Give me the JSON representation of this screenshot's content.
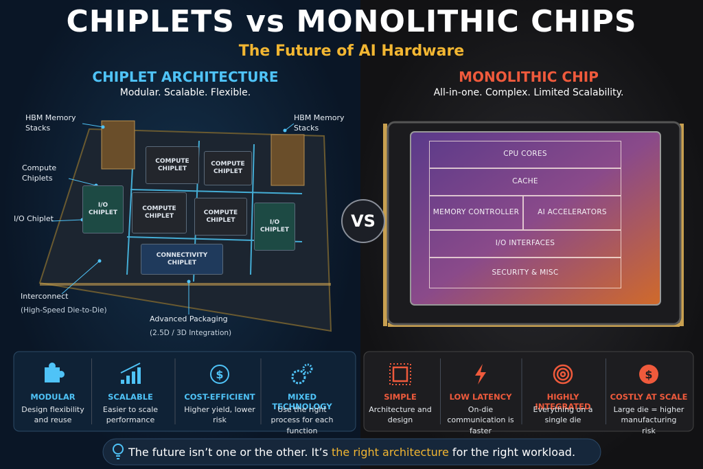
{
  "header": {
    "title": "CHIPLETS vs MONOLITHIC CHIPS",
    "subtitle": "The Future of AI Hardware"
  },
  "left": {
    "title": "CHIPLET ARCHITECTURE",
    "tagline": "Modular. Scalable. Flexible.",
    "chips": [
      "COMPUTE CHIPLET",
      "COMPUTE CHIPLET",
      "I/O CHIPLET",
      "COMPUTE CHIPLET",
      "COMPUTE CHIPLET",
      "I/O CHIPLET",
      "CONNECTIVITY CHIPLET"
    ],
    "callouts": [
      "HBM Memory Stacks",
      "HBM Memory Stacks",
      "Compute Chiplets",
      "I/O Chiplet",
      "Interconnect",
      "(High-Speed Die-to-Die)",
      "Advanced Packaging",
      "(2.5D / 3D Integration)"
    ],
    "features": [
      {
        "title": "MODULAR",
        "text": "Design flexibility and reuse"
      },
      {
        "title": "SCALABLE",
        "text": "Easier to scale performance"
      },
      {
        "title": "COST-EFFICIENT",
        "text": "Higher yield, lower risk"
      },
      {
        "title": "MIXED TECHNOLOGY",
        "text": "Use the right process for each function"
      }
    ]
  },
  "vs": "VS",
  "right": {
    "title": "MONOLITHIC CHIP",
    "tagline": "All-in-one. Complex. Limited Scalability.",
    "blocks": [
      "CPU CORES",
      "CACHE",
      "MEMORY CONTROLLER",
      "AI ACCELERATORS",
      "I/O INTERFACES",
      "SECURITY & MISC"
    ],
    "features": [
      {
        "title": "SIMPLE",
        "text": "Architecture and design"
      },
      {
        "title": "LOW LATENCY",
        "text": "On-die communication is faster"
      },
      {
        "title": "HIGHLY INTEGRATED",
        "text": "Everything on a single die"
      },
      {
        "title": "COSTLY AT SCALE",
        "text": "Large die = higher manufacturing risk"
      }
    ]
  },
  "footer": {
    "text_before": "The future isn’t one or the other. It’s ",
    "highlight": "the right architecture",
    "text_after": " for the right workload."
  }
}
